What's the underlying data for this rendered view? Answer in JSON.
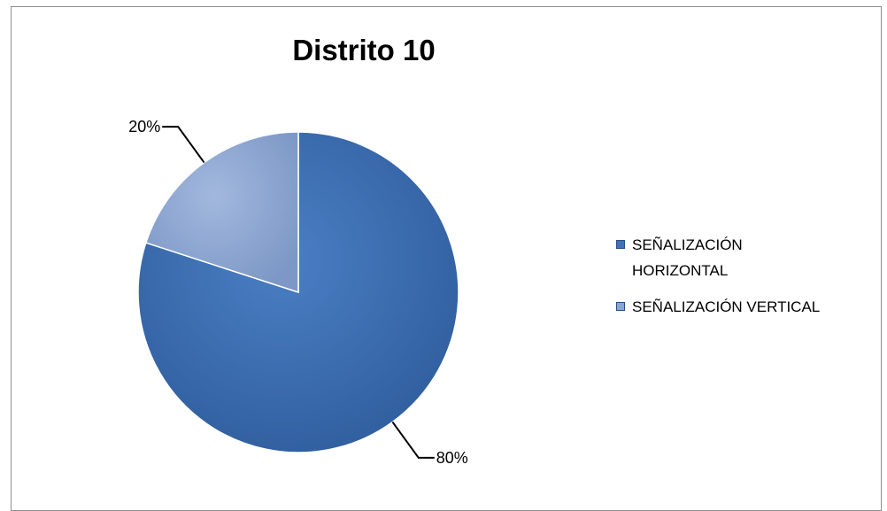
{
  "chart_data": {
    "type": "pie",
    "title": "Distrito 10",
    "categories": [
      "SEÑALIZACIÓN HORIZONTAL",
      "SEÑALIZACIÓN VERTICAL"
    ],
    "values": [
      80,
      20
    ],
    "data_labels": [
      "80%",
      "20%"
    ],
    "colors": [
      "#3f72b8",
      "#8aa6d4"
    ],
    "legend": "right"
  }
}
